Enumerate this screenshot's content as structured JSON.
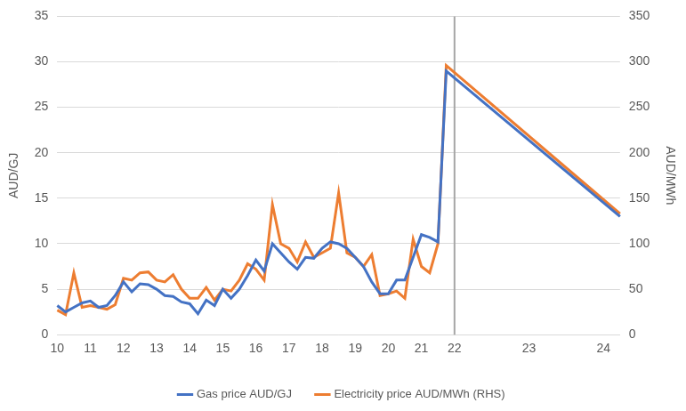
{
  "chart_data": {
    "type": "line",
    "categories": [
      "10",
      null,
      null,
      null,
      "11",
      null,
      null,
      null,
      "12",
      null,
      null,
      null,
      "13",
      null,
      null,
      null,
      "14",
      null,
      null,
      null,
      "15",
      null,
      null,
      null,
      "16",
      null,
      null,
      null,
      "17",
      null,
      null,
      null,
      "18",
      null,
      null,
      null,
      "19",
      null,
      null,
      null,
      "20",
      null,
      null,
      null,
      "21",
      null,
      null,
      null,
      "22",
      null,
      null,
      null,
      null,
      null,
      null,
      null,
      null,
      "23",
      null,
      null,
      null,
      null,
      null,
      null,
      null,
      null,
      "24",
      null,
      null
    ],
    "series": [
      {
        "name": "Gas price AUD/GJ",
        "color": "#4472c4",
        "axis": "y",
        "values": [
          3.2,
          2.5,
          3.0,
          3.5,
          3.7,
          3.0,
          3.2,
          4.3,
          5.8,
          4.7,
          5.6,
          5.5,
          5.0,
          4.3,
          4.2,
          3.6,
          3.4,
          2.3,
          3.8,
          3.2,
          5.0,
          4.0,
          5.0,
          6.5,
          8.2,
          7.0,
          10.0,
          9.0,
          8.0,
          7.2,
          8.5,
          8.4,
          9.5,
          10.2,
          10.0,
          9.5,
          8.5,
          7.5,
          5.8,
          4.5,
          4.5,
          6.0,
          6.0,
          8.5,
          11.0,
          10.7,
          10.2,
          29.0,
          null,
          null,
          null,
          null,
          null,
          null,
          null,
          null,
          null,
          null,
          null,
          null,
          null,
          null,
          null,
          null,
          null,
          null,
          null,
          null,
          13.0
        ]
      },
      {
        "name": "Electricity price AUD/MWh (RHS)",
        "color": "#ed7d31",
        "axis": "y2",
        "values": [
          27,
          22,
          68,
          30,
          32,
          30,
          28,
          33,
          62,
          60,
          68,
          69,
          60,
          58,
          66,
          50,
          40,
          40,
          52,
          38,
          50,
          48,
          60,
          78,
          72,
          60,
          143,
          100,
          95,
          80,
          102,
          85,
          90,
          95,
          156,
          90,
          85,
          75,
          88,
          43,
          45,
          48,
          40,
          105,
          75,
          68,
          100,
          296,
          null,
          null,
          null,
          null,
          null,
          null,
          null,
          null,
          null,
          null,
          null,
          null,
          null,
          null,
          null,
          null,
          null,
          null,
          null,
          null,
          133
        ]
      }
    ],
    "y_label": "AUD/GJ",
    "y2_label": "AUD/MWh",
    "ylim": [
      0,
      35
    ],
    "yticks": [
      0,
      5,
      10,
      15,
      20,
      25,
      30,
      35
    ],
    "y2lim": [
      0,
      350
    ],
    "y2ticks": [
      0,
      50,
      100,
      150,
      200,
      250,
      300,
      350
    ],
    "vertical_line_at": "22",
    "grid": true,
    "legend": "bottom"
  }
}
